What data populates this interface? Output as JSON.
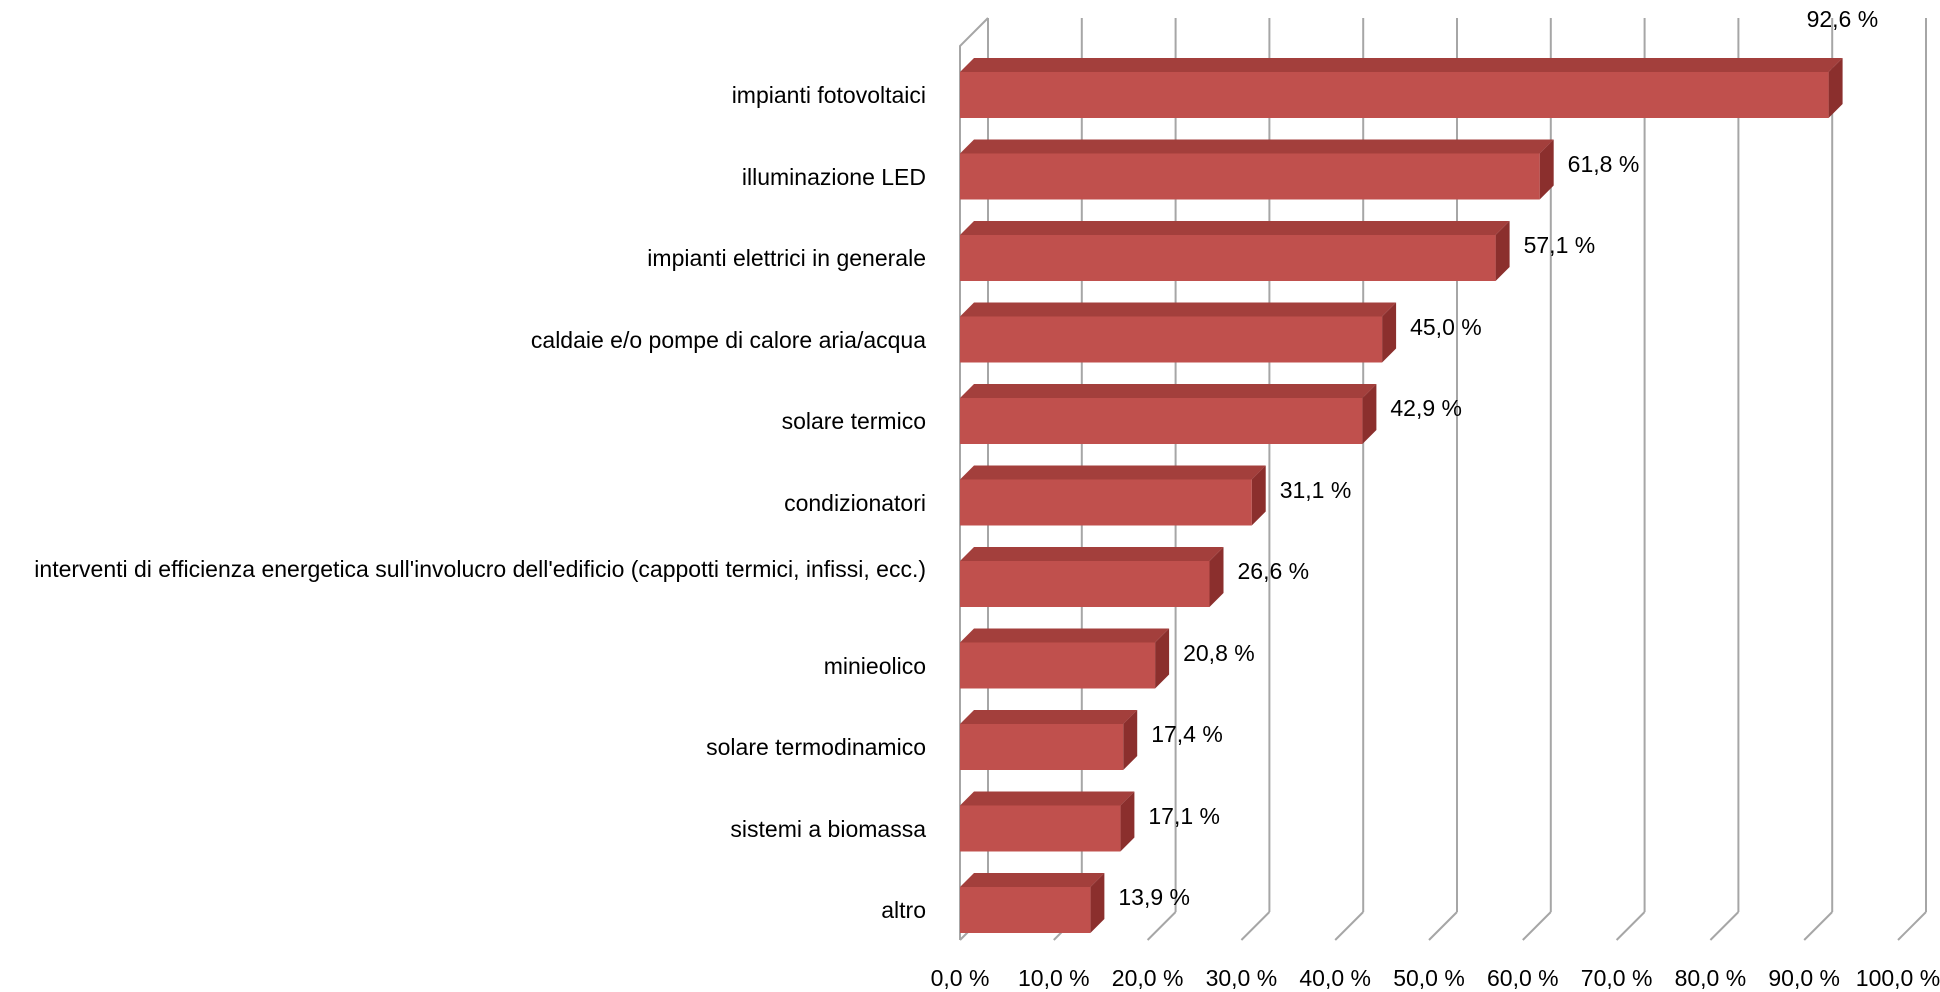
{
  "chart_data": {
    "type": "bar",
    "orientation": "horizontal",
    "style": "3d",
    "bar_color": "#c0504d",
    "bar_top_color": "#a33f3c",
    "bar_side_color": "#8b2f2d",
    "grid": true,
    "xlim": [
      0,
      100
    ],
    "tick_labels": [
      "0,0 %",
      "10,0 %",
      "20,0 %",
      "30,0 %",
      "40,0 %",
      "50,0 %",
      "60,0 %",
      "70,0 %",
      "80,0 %",
      "90,0 %",
      "100,0 %"
    ],
    "categories": [
      "impianti fotovoltaici",
      "illuminazione LED",
      "impianti elettrici in generale",
      "caldaie e/o pompe di calore aria/acqua",
      "solare termico",
      "condizionatori",
      "interventi di efficienza energetica sull'involucro dell'edificio (cappotti termici, infissi, ecc.)",
      "minieolico",
      "solare termodinamico",
      "sistemi a biomassa",
      "altro"
    ],
    "values": [
      92.6,
      61.8,
      57.1,
      45.0,
      42.9,
      31.1,
      26.6,
      20.8,
      17.4,
      17.1,
      13.9
    ],
    "value_labels": [
      "92,6 %",
      "61,8 %",
      "57,1 %",
      "45,0 %",
      "42,9 %",
      "31,1 %",
      "26,6 %",
      "20,8 %",
      "17,4 %",
      "17,1 %",
      "13,9 %"
    ]
  }
}
